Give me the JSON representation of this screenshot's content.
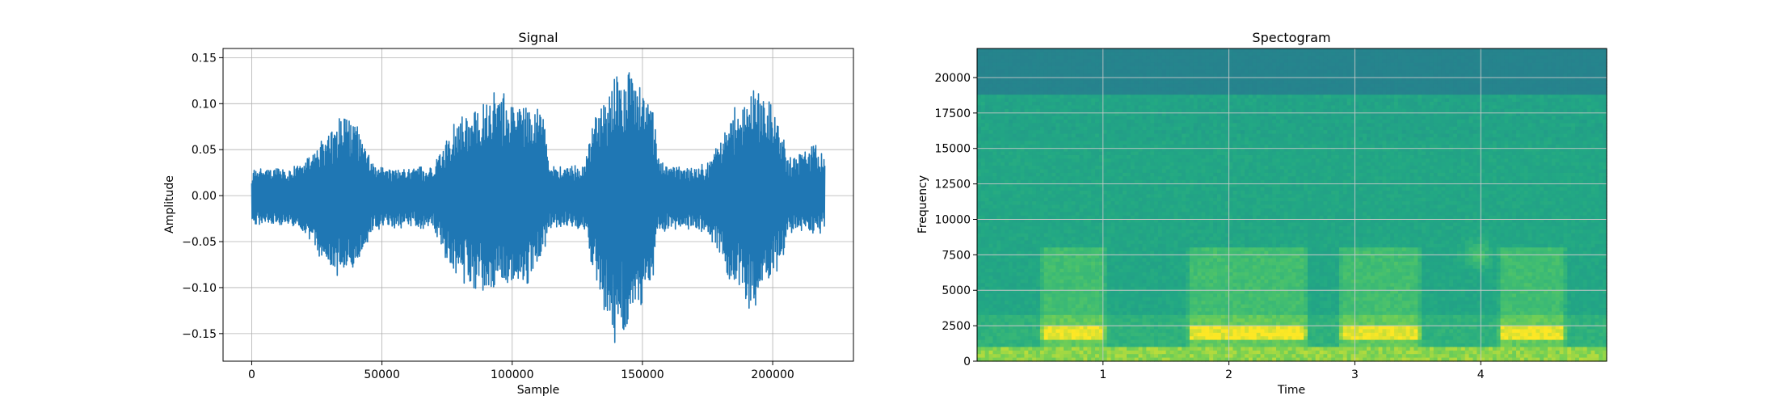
{
  "chart_data": [
    {
      "type": "line",
      "title": "Signal",
      "xlabel": "Sample",
      "ylabel": "Amplitude",
      "xlim": [
        -11000,
        231000
      ],
      "ylim": [
        -0.18,
        0.16
      ],
      "xticks": [
        0,
        50000,
        100000,
        150000,
        200000
      ],
      "xtick_labels": [
        "0",
        "50000",
        "100000",
        "150000",
        "200000"
      ],
      "yticks": [
        0.15,
        0.1,
        0.05,
        0.0,
        -0.05,
        -0.1,
        -0.15
      ],
      "ytick_labels": [
        "0.15",
        "0.10",
        "0.05",
        "0.00",
        "−0.05",
        "−0.10",
        "−0.15"
      ],
      "grid": true,
      "color": "#1f77b4",
      "envelope": {
        "sample": [
          0,
          5000,
          18000,
          22000,
          27000,
          34000,
          40000,
          43000,
          46000,
          50000,
          60000,
          70000,
          74000,
          78000,
          85000,
          92000,
          100000,
          106000,
          112000,
          114000,
          120000,
          128000,
          132000,
          136000,
          140000,
          145000,
          150000,
          154000,
          156000,
          165000,
          175000,
          182000,
          186000,
          192000,
          198000,
          204000,
          206000,
          212000,
          217000,
          220000
        ],
        "max": [
          0.027,
          0.03,
          0.032,
          0.045,
          0.06,
          0.085,
          0.078,
          0.06,
          0.035,
          0.03,
          0.03,
          0.032,
          0.06,
          0.085,
          0.1,
          0.112,
          0.11,
          0.1,
          0.09,
          0.035,
          0.03,
          0.035,
          0.09,
          0.11,
          0.14,
          0.143,
          0.12,
          0.1,
          0.04,
          0.03,
          0.035,
          0.07,
          0.1,
          0.115,
          0.105,
          0.075,
          0.04,
          0.05,
          0.055,
          0.05
        ],
        "min": [
          -0.03,
          -0.032,
          -0.035,
          -0.05,
          -0.07,
          -0.09,
          -0.08,
          -0.06,
          -0.04,
          -0.035,
          -0.035,
          -0.036,
          -0.065,
          -0.09,
          -0.1,
          -0.105,
          -0.1,
          -0.095,
          -0.07,
          -0.035,
          -0.033,
          -0.04,
          -0.095,
          -0.13,
          -0.165,
          -0.145,
          -0.115,
          -0.09,
          -0.04,
          -0.035,
          -0.04,
          -0.08,
          -0.11,
          -0.125,
          -0.1,
          -0.07,
          -0.04,
          -0.04,
          -0.045,
          -0.035
        ]
      }
    },
    {
      "type": "heatmap",
      "title": "Spectogram",
      "xlabel": "Time",
      "ylabel": "Frequency",
      "xlim": [
        0,
        5.0
      ],
      "ylim": [
        0,
        22050
      ],
      "xticks": [
        1,
        2,
        3,
        4
      ],
      "xtick_labels": [
        "1",
        "2",
        "3",
        "4"
      ],
      "yticks": [
        0,
        2500,
        5000,
        7500,
        10000,
        12500,
        15000,
        17500,
        20000
      ],
      "ytick_labels": [
        "0",
        "2500",
        "5000",
        "7500",
        "10000",
        "12500",
        "15000",
        "17500",
        "20000"
      ],
      "grid": true,
      "colormap": "viridis",
      "speech_segments": [
        [
          0.53,
          1.0
        ],
        [
          1.7,
          2.6
        ],
        [
          2.9,
          3.5
        ],
        [
          4.17,
          4.65
        ]
      ],
      "bursts": [
        {
          "t": 3.98,
          "f": 7500
        }
      ],
      "cutoff_freq": 18500
    }
  ]
}
